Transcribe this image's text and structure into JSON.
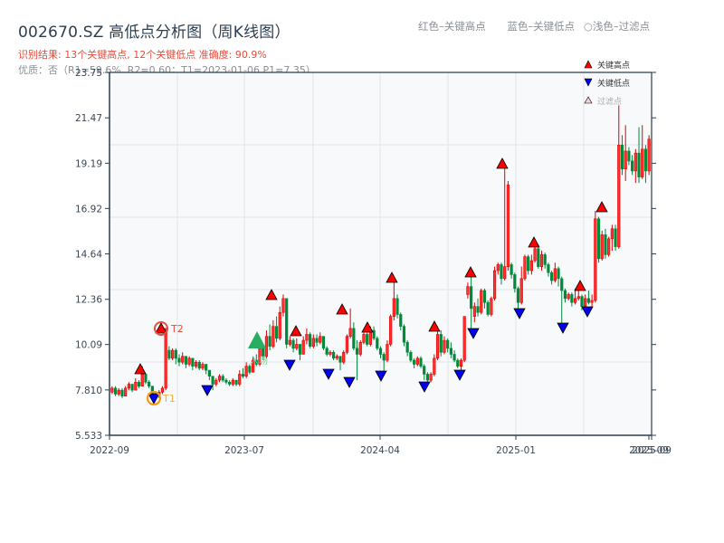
{
  "header": {
    "title": "002670.SZ 高低点分析图（周K线图）",
    "result_line": "识别结果: 13个关键高点, 12个关键低点   准确度: 90.9%",
    "quality_line": "优质：否（R1=59.6%, R2=0.60；T1=2023-01-06 P1=7.35）"
  },
  "top_legend": {
    "red": "红色–关键高点",
    "blue": "蓝色–关键低点",
    "light": "○浅色–过滤点"
  },
  "legend": {
    "items": [
      {
        "label": "关键高点",
        "color": "#ff0000",
        "shape": "up-triangle"
      },
      {
        "label": "关键低点",
        "color": "#0000ee",
        "shape": "down-triangle"
      },
      {
        "label": "过滤点",
        "color": "#ffd0d0",
        "shape": "up-triangle-outline"
      }
    ]
  },
  "annotations": {
    "t1": "T1",
    "t2": "T2",
    "entry": "入场"
  },
  "colors": {
    "up": "#e00000",
    "down": "#008a3a",
    "high_marker": "#ff0000",
    "low_marker": "#0000ee",
    "t1_ring": "#f39c12",
    "t2_ring": "#e74c3c",
    "entry": "#27ae60",
    "axis": "#2c3e50",
    "grid": "#e2e5ea",
    "plot_bg": "#f7f9fb"
  },
  "chart_data": {
    "type": "candlestick",
    "title": "002670.SZ 高低点分析图（周K线图）",
    "xlabel": "",
    "ylabel": "",
    "ylim": [
      5.533,
      23.75
    ],
    "y_ticks": [
      "5.533",
      "7.810",
      "10.09",
      "12.36",
      "14.64",
      "16.92",
      "19.19",
      "21.47",
      "23.75"
    ],
    "x_ticks": [
      "2022-09",
      "2023-07",
      "2024-04",
      "2025-01",
      "2025-09",
      "2025-09"
    ],
    "grid": true,
    "legend_position": "upper right",
    "key_highs": [
      {
        "date": "2022-12",
        "price": 9.0
      },
      {
        "date": "2023-01",
        "price": 10.9
      },
      {
        "date": "2023-08",
        "price": 12.6
      },
      {
        "date": "2023-10",
        "price": 10.9
      },
      {
        "date": "2024-01",
        "price": 11.9
      },
      {
        "date": "2024-03",
        "price": 11.0
      },
      {
        "date": "2024-05",
        "price": 13.3
      },
      {
        "date": "2024-08",
        "price": 11.0
      },
      {
        "date": "2024-10",
        "price": 13.6
      },
      {
        "date": "2024-12",
        "price": 19.2
      },
      {
        "date": "2025-02",
        "price": 15.0
      },
      {
        "date": "2025-04",
        "price": 12.9
      },
      {
        "date": "2025-06",
        "price": 16.8
      }
    ],
    "key_lows": [
      {
        "date": "2023-01",
        "price": 7.35
      },
      {
        "date": "2023-04",
        "price": 7.8
      },
      {
        "date": "2023-09",
        "price": 9.3
      },
      {
        "date": "2023-12",
        "price": 8.8
      },
      {
        "date": "2024-02",
        "price": 8.3
      },
      {
        "date": "2024-04",
        "price": 8.6
      },
      {
        "date": "2024-07",
        "price": 8.0
      },
      {
        "date": "2024-09",
        "price": 8.6
      },
      {
        "date": "2024-10",
        "price": 10.8
      },
      {
        "date": "2025-01",
        "price": 11.8
      },
      {
        "date": "2025-04",
        "price": 11.1
      },
      {
        "date": "2025-05",
        "price": 11.8
      }
    ],
    "points": {
      "T1": {
        "date": "2023-01-06",
        "price": 7.35
      },
      "T2": {
        "date": "2023-01",
        "price": 10.9
      },
      "entry": {
        "date": "2023-07",
        "price": 10.3
      }
    },
    "candles": [
      [
        7.7,
        7.9,
        7.6,
        8.0
      ],
      [
        7.9,
        7.6,
        7.5,
        8.0
      ],
      [
        7.6,
        7.8,
        7.5,
        7.9
      ],
      [
        7.8,
        7.5,
        7.4,
        7.9
      ],
      [
        7.5,
        7.9,
        7.5,
        8.0
      ],
      [
        7.9,
        8.1,
        7.8,
        8.2
      ],
      [
        8.1,
        7.8,
        7.7,
        8.1
      ],
      [
        7.8,
        8.2,
        7.8,
        8.4
      ],
      [
        8.2,
        8.0,
        7.9,
        8.3
      ],
      [
        8.0,
        8.6,
        8.0,
        9.0
      ],
      [
        8.6,
        8.2,
        8.1,
        8.6
      ],
      [
        8.2,
        8.0,
        7.9,
        8.3
      ],
      [
        8.0,
        7.6,
        7.5,
        8.0
      ],
      [
        7.6,
        7.5,
        7.35,
        7.7
      ],
      [
        7.5,
        7.7,
        7.4,
        7.8
      ],
      [
        7.7,
        7.9,
        7.6,
        8.0
      ],
      [
        7.9,
        10.9,
        7.8,
        10.9
      ],
      [
        9.8,
        9.4,
        9.3,
        10.0
      ],
      [
        9.4,
        9.8,
        9.3,
        9.9
      ],
      [
        9.8,
        9.4,
        9.1,
        9.9
      ],
      [
        9.4,
        9.2,
        9.0,
        9.6
      ],
      [
        9.2,
        9.5,
        9.1,
        9.7
      ],
      [
        9.5,
        9.1,
        8.9,
        9.5
      ],
      [
        9.1,
        9.4,
        9.0,
        9.5
      ],
      [
        9.4,
        9.0,
        8.8,
        9.4
      ],
      [
        9.0,
        9.2,
        8.9,
        9.3
      ],
      [
        9.2,
        8.9,
        8.8,
        9.3
      ],
      [
        8.9,
        9.1,
        8.8,
        9.2
      ],
      [
        9.1,
        8.8,
        8.6,
        9.1
      ],
      [
        8.8,
        8.5,
        8.3,
        8.8
      ],
      [
        8.5,
        8.1,
        7.8,
        8.5
      ],
      [
        8.1,
        8.3,
        8.0,
        8.4
      ],
      [
        8.3,
        8.5,
        8.2,
        8.6
      ],
      [
        8.5,
        8.3,
        8.2,
        8.6
      ],
      [
        8.3,
        8.2,
        8.1,
        8.4
      ],
      [
        8.2,
        8.1,
        8.0,
        8.3
      ],
      [
        8.1,
        8.3,
        8.0,
        8.4
      ],
      [
        8.3,
        8.1,
        8.0,
        8.3
      ],
      [
        8.1,
        8.6,
        8.0,
        8.8
      ],
      [
        8.6,
        8.5,
        8.4,
        8.9
      ],
      [
        8.5,
        9.0,
        8.4,
        9.2
      ],
      [
        9.0,
        8.7,
        8.6,
        9.1
      ],
      [
        8.7,
        9.3,
        8.7,
        9.5
      ],
      [
        9.3,
        9.1,
        9.0,
        9.6
      ],
      [
        9.1,
        9.9,
        9.0,
        10.1
      ],
      [
        9.9,
        9.5,
        9.3,
        10.0
      ],
      [
        9.5,
        10.5,
        9.4,
        10.8
      ],
      [
        10.5,
        10.0,
        9.8,
        11.1
      ],
      [
        10.0,
        11.0,
        9.9,
        11.3
      ],
      [
        11.0,
        10.4,
        10.2,
        11.5
      ],
      [
        10.4,
        11.7,
        10.3,
        12.0
      ],
      [
        11.7,
        12.4,
        11.5,
        12.6
      ],
      [
        12.4,
        10.1,
        9.9,
        12.4
      ],
      [
        10.1,
        10.3,
        10.0,
        10.5
      ],
      [
        10.3,
        9.9,
        9.7,
        10.4
      ],
      [
        9.9,
        10.1,
        9.8,
        10.4
      ],
      [
        10.1,
        9.6,
        9.3,
        10.1
      ],
      [
        9.6,
        10.3,
        9.6,
        10.5
      ],
      [
        10.3,
        10.6,
        10.1,
        10.9
      ],
      [
        10.6,
        10.0,
        9.9,
        10.7
      ],
      [
        10.0,
        10.4,
        9.9,
        10.6
      ],
      [
        10.4,
        10.2,
        10.0,
        10.6
      ],
      [
        10.2,
        10.5,
        10.1,
        10.7
      ],
      [
        10.5,
        9.9,
        9.8,
        10.5
      ],
      [
        9.9,
        9.6,
        9.5,
        10.0
      ],
      [
        9.6,
        9.7,
        9.5,
        9.8
      ],
      [
        9.7,
        9.4,
        9.3,
        9.8
      ],
      [
        9.4,
        9.5,
        9.3,
        9.6
      ],
      [
        9.5,
        9.2,
        8.8,
        9.5
      ],
      [
        9.2,
        9.7,
        9.1,
        9.8
      ],
      [
        9.7,
        10.5,
        9.6,
        10.6
      ],
      [
        10.5,
        10.9,
        10.4,
        11.9
      ],
      [
        10.9,
        9.9,
        9.8,
        11.2
      ],
      [
        9.9,
        9.6,
        8.3,
        10.3
      ],
      [
        9.6,
        10.2,
        9.5,
        10.3
      ],
      [
        10.2,
        10.6,
        10.1,
        10.7
      ],
      [
        10.6,
        10.1,
        10.0,
        10.7
      ],
      [
        10.1,
        10.8,
        10.0,
        11.0
      ],
      [
        10.8,
        10.4,
        10.3,
        11.0
      ],
      [
        10.4,
        9.9,
        9.8,
        10.5
      ],
      [
        9.9,
        9.6,
        9.4,
        10.0
      ],
      [
        9.6,
        9.3,
        8.6,
        9.7
      ],
      [
        9.3,
        10.1,
        9.2,
        10.3
      ],
      [
        10.1,
        11.5,
        10.0,
        11.6
      ],
      [
        11.5,
        12.4,
        11.3,
        13.3
      ],
      [
        12.4,
        11.6,
        11.4,
        12.6
      ],
      [
        11.6,
        11.0,
        10.8,
        11.7
      ],
      [
        11.0,
        10.2,
        10.0,
        11.1
      ],
      [
        10.2,
        9.7,
        9.5,
        10.3
      ],
      [
        9.7,
        9.3,
        9.2,
        9.8
      ],
      [
        9.3,
        9.1,
        8.9,
        9.4
      ],
      [
        9.1,
        9.4,
        9.0,
        9.5
      ],
      [
        9.4,
        9.0,
        8.9,
        9.5
      ],
      [
        9.0,
        8.6,
        8.3,
        9.1
      ],
      [
        8.6,
        8.3,
        8.0,
        8.7
      ],
      [
        8.3,
        8.6,
        8.2,
        8.7
      ],
      [
        8.6,
        9.4,
        8.5,
        9.6
      ],
      [
        9.4,
        10.6,
        9.3,
        11.0
      ],
      [
        10.6,
        9.7,
        9.5,
        10.8
      ],
      [
        9.7,
        10.3,
        9.6,
        10.5
      ],
      [
        10.3,
        9.9,
        9.7,
        10.4
      ],
      [
        9.9,
        9.6,
        9.4,
        10.2
      ],
      [
        9.6,
        9.3,
        9.2,
        9.8
      ],
      [
        9.3,
        9.0,
        8.9,
        9.4
      ],
      [
        9.0,
        9.3,
        8.6,
        9.4
      ],
      [
        9.3,
        11.5,
        9.2,
        11.5
      ],
      [
        12.6,
        13.0,
        12.4,
        13.2
      ],
      [
        13.0,
        11.9,
        10.8,
        13.6
      ],
      [
        11.5,
        12.0,
        11.2,
        12.2
      ],
      [
        12.0,
        11.7,
        11.5,
        12.4
      ],
      [
        11.7,
        12.8,
        11.6,
        12.9
      ],
      [
        12.8,
        12.2,
        11.9,
        12.9
      ],
      [
        12.2,
        11.6,
        11.5,
        12.3
      ],
      [
        11.6,
        12.4,
        11.5,
        12.5
      ],
      [
        12.4,
        13.8,
        12.3,
        14.0
      ],
      [
        13.8,
        14.1,
        13.6,
        14.2
      ],
      [
        14.1,
        13.4,
        13.1,
        14.2
      ],
      [
        13.4,
        14.0,
        13.3,
        19.2
      ],
      [
        14.0,
        18.1,
        13.8,
        18.3
      ],
      [
        14.1,
        13.6,
        13.4,
        14.2
      ],
      [
        13.6,
        12.9,
        12.7,
        13.7
      ],
      [
        12.9,
        12.2,
        11.8,
        13.0
      ],
      [
        12.2,
        13.4,
        12.1,
        14.0
      ],
      [
        13.4,
        14.5,
        13.3,
        14.6
      ],
      [
        14.5,
        13.8,
        13.6,
        14.6
      ],
      [
        13.8,
        14.3,
        13.6,
        14.6
      ],
      [
        14.3,
        14.9,
        14.2,
        15.0
      ],
      [
        14.9,
        14.0,
        13.9,
        15.1
      ],
      [
        14.0,
        14.6,
        13.8,
        14.8
      ],
      [
        14.6,
        14.1,
        13.9,
        14.7
      ],
      [
        14.1,
        13.7,
        13.5,
        14.2
      ],
      [
        13.7,
        13.3,
        13.1,
        13.8
      ],
      [
        13.3,
        13.9,
        13.2,
        14.2
      ],
      [
        13.9,
        13.4,
        13.0,
        14.0
      ],
      [
        13.4,
        12.8,
        11.1,
        13.5
      ],
      [
        12.8,
        12.4,
        12.2,
        12.9
      ],
      [
        12.4,
        12.6,
        12.3,
        12.7
      ],
      [
        12.6,
        12.2,
        12.0,
        12.7
      ],
      [
        12.2,
        12.4,
        12.1,
        12.9
      ],
      [
        12.4,
        12.5,
        12.3,
        12.9
      ],
      [
        12.5,
        12.0,
        11.8,
        12.6
      ],
      [
        12.0,
        12.4,
        11.9,
        12.6
      ],
      [
        12.4,
        12.2,
        12.1,
        12.8
      ],
      [
        12.2,
        12.3,
        12.0,
        12.6
      ],
      [
        12.3,
        16.4,
        12.2,
        16.8
      ],
      [
        16.4,
        14.4,
        14.2,
        16.5
      ],
      [
        14.4,
        15.6,
        14.3,
        15.8
      ],
      [
        15.6,
        14.6,
        14.4,
        15.9
      ],
      [
        14.6,
        15.4,
        14.5,
        15.5
      ],
      [
        15.4,
        15.9,
        14.8,
        16.1
      ],
      [
        15.9,
        15.0,
        14.8,
        16.1
      ],
      [
        15.0,
        20.1,
        14.9,
        22.1
      ],
      [
        20.1,
        18.9,
        18.6,
        20.6
      ],
      [
        18.9,
        19.8,
        18.3,
        21.1
      ],
      [
        19.8,
        19.3,
        19.1,
        20.0
      ],
      [
        19.3,
        18.8,
        18.6,
        19.6
      ],
      [
        18.8,
        19.7,
        18.2,
        19.9
      ],
      [
        19.7,
        18.5,
        18.2,
        21.0
      ],
      [
        18.5,
        19.9,
        18.4,
        21.1
      ],
      [
        19.9,
        18.8,
        18.2,
        20.1
      ],
      [
        18.8,
        20.4,
        18.6,
        20.6
      ]
    ]
  }
}
